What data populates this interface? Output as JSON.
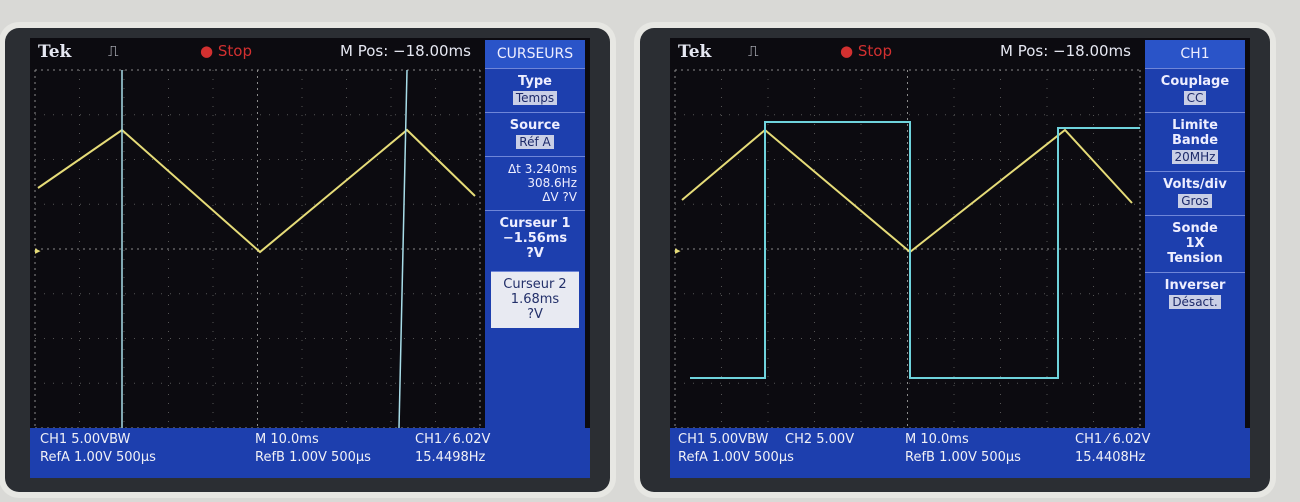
{
  "screens": [
    {
      "header": {
        "brand": "Tek",
        "status": "Stop",
        "mpos": "M Pos: −18.00ms"
      },
      "menu": {
        "title": "CURSEURS",
        "items": [
          {
            "label": "Type",
            "value": "Temps"
          },
          {
            "label": "Source",
            "value": "Réf A"
          },
          {
            "lines": [
              "Δt 3.240ms",
              "308.6Hz",
              "ΔV ?V"
            ]
          },
          {
            "lines": [
              "Curseur 1",
              "−1.56ms",
              "?V"
            ]
          },
          {
            "lines": [
              "Curseur 2",
              "1.68ms",
              "?V"
            ]
          }
        ]
      },
      "footer": [
        "CH1  5.00VBW",
        "RefA 1.00V 500µs",
        "M 10.0ms",
        "RefB 1.00V 500µs",
        "CH1 ⁄ 6.02V",
        "15.4498Hz"
      ]
    },
    {
      "header": {
        "brand": "Tek",
        "status": "Stop",
        "mpos": "M Pos: −18.00ms"
      },
      "menu": {
        "title": "CH1",
        "items": [
          {
            "label": "Couplage",
            "value": "CC"
          },
          {
            "label": "Limite Bande",
            "value": "20MHz"
          },
          {
            "label": "Volts/div",
            "value": "Gros"
          },
          {
            "lines": [
              "Sonde",
              "1X",
              "Tension"
            ]
          },
          {
            "label": "Inverser",
            "value": "Désact."
          }
        ]
      },
      "footer": [
        "CH1  5.00VBW",
        "CH2  5.00V",
        "RefA 1.00V 500µs",
        "M 10.0ms",
        "RefB 1.00V 500µs",
        "CH1 ⁄ 6.02V",
        "15.4408Hz"
      ]
    }
  ]
}
